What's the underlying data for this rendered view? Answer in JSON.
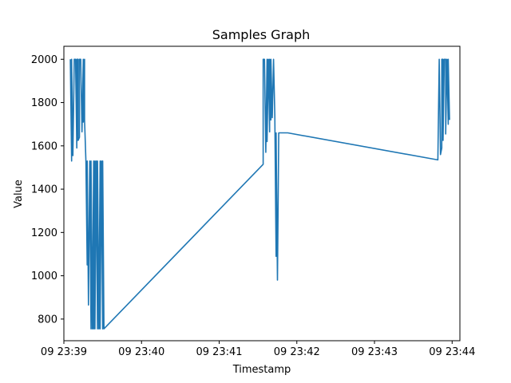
{
  "chart_data": {
    "type": "line",
    "title": "Samples Graph",
    "xlabel": "Timestamp",
    "ylabel": "Value",
    "x_ticks": [
      "09 23:39",
      "09 23:40",
      "09 23:41",
      "09 23:42",
      "09 23:43",
      "09 23:44"
    ],
    "y_ticks": [
      "800",
      "1000",
      "1200",
      "1400",
      "1600",
      "1800",
      "2000"
    ],
    "y_tick_values": [
      800,
      1000,
      1200,
      1400,
      1600,
      1800,
      2000
    ],
    "xlim": [
      "23:39:00",
      "23:44:06"
    ],
    "ylim": [
      700,
      2060
    ],
    "grid": false,
    "series": [
      {
        "color": "#1f77b4",
        "x": [
          "23:39:05",
          "23:39:06",
          "23:39:06",
          "23:39:07",
          "23:39:08",
          "23:39:09",
          "23:39:10",
          "23:39:10",
          "23:39:11",
          "23:39:11",
          "23:39:12",
          "23:39:12",
          "23:39:13",
          "23:39:14",
          "23:39:15",
          "23:39:15",
          "23:39:16",
          "23:39:16",
          "23:39:17",
          "23:39:18",
          "23:39:18",
          "23:39:19",
          "23:39:20",
          "23:39:21",
          "23:39:21",
          "23:39:22",
          "23:39:23",
          "23:39:23",
          "23:39:24",
          "23:39:24",
          "23:39:25",
          "23:39:26",
          "23:39:26",
          "23:39:27",
          "23:39:28",
          "23:39:28",
          "23:39:29",
          "23:39:30",
          "23:39:30",
          "23:39:31",
          "23:41:34",
          "23:41:34",
          "23:41:35",
          "23:41:36",
          "23:41:37",
          "23:41:37",
          "23:41:38",
          "23:41:39",
          "23:41:39",
          "23:41:40",
          "23:41:40",
          "23:41:41",
          "23:41:42",
          "23:41:43",
          "23:41:44",
          "23:41:44",
          "23:41:45",
          "23:41:46",
          "23:41:46",
          "23:41:47",
          "23:41:47",
          "23:41:48",
          "23:41:48",
          "23:41:49",
          "23:41:50",
          "23:41:51",
          "23:41:52",
          "23:41:53",
          "23:43:49",
          "23:43:50",
          "23:43:50",
          "23:43:51",
          "23:43:52",
          "23:43:52",
          "23:43:53",
          "23:43:53",
          "23:43:54",
          "23:43:55",
          "23:43:55",
          "23:43:56",
          "23:43:57",
          "23:43:57",
          "23:43:58"
        ],
        "y": [
          2000,
          1530,
          2000,
          1555,
          2000,
          2000,
          1590,
          2000,
          2000,
          1625,
          1640,
          2000,
          2000,
          1665,
          2000,
          1710,
          2000,
          1720,
          1530,
          1050,
          1530,
          865,
          1530,
          755,
          1530,
          755,
          1530,
          755,
          1530,
          755,
          1530,
          755,
          1530,
          755,
          1530,
          755,
          1530,
          755,
          1530,
          755,
          1515,
          2000,
          2000,
          1570,
          2000,
          1620,
          2000,
          1665,
          2000,
          1720,
          2000,
          1730,
          2000,
          1740,
          1090,
          1660,
          980,
          1660,
          1660,
          1660,
          1660,
          1660,
          1660,
          1660,
          1660,
          1660,
          1660,
          1660,
          1535,
          2000,
          2000,
          1560,
          1590,
          2000,
          2000,
          1625,
          2000,
          2000,
          1655,
          2000,
          1700,
          2000,
          1720
        ]
      }
    ]
  }
}
